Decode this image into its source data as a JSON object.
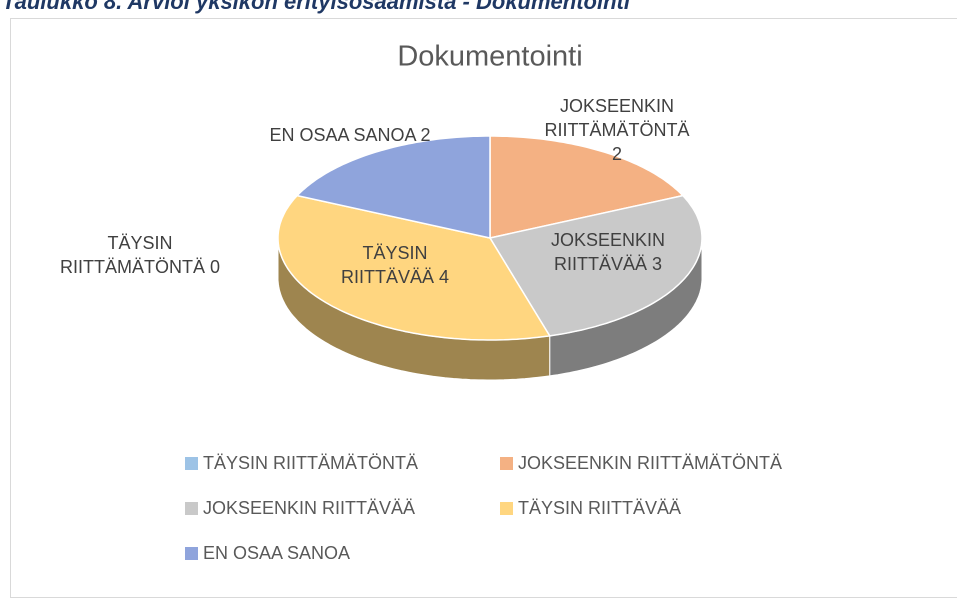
{
  "caption": "Taulukko 8. Arvioi yksikön erityisosaamista - Dokumentointi",
  "chart_data": {
    "type": "pie",
    "title": "Dokumentointi",
    "categories": [
      "TÄYSIN RIITTÄMÄTÖNTÄ",
      "JOKSEENKIN RIITTÄMÄTÖNTÄ",
      "JOKSEENKIN RIITTÄVÄÄ",
      "TÄYSIN RIITTÄVÄÄ",
      "EN OSAA SANOA"
    ],
    "values": [
      0,
      2,
      3,
      4,
      2
    ],
    "colors": [
      "#9dc3e6",
      "#f4b183",
      "#c9c9c9",
      "#ffd680",
      "#8fa4dc"
    ],
    "legend": "bottom"
  }
}
